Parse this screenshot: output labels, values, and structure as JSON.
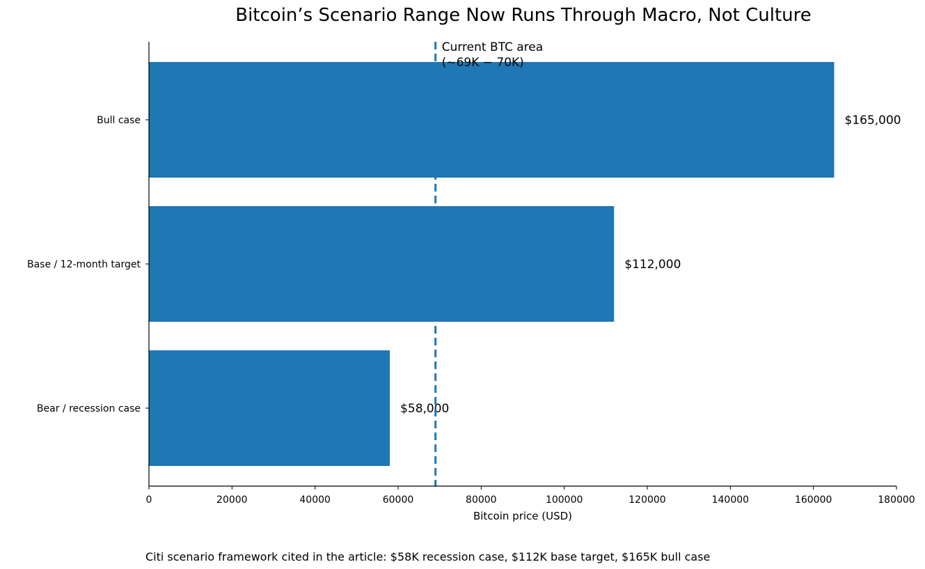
{
  "chart_data": {
    "type": "bar",
    "orientation": "horizontal",
    "title": "Bitcoin’s Scenario Range Now Runs Through Macro, Not Culture",
    "xlabel": "Bitcoin price (USD)",
    "ylabel": "",
    "categories": [
      "Bear / recession case",
      "Base / 12-month target",
      "Bull case"
    ],
    "values": [
      58000,
      112000,
      165000
    ],
    "value_labels": [
      "$58,000",
      "$112,000",
      "$165,000"
    ],
    "xlim": [
      0,
      180000
    ],
    "x_ticks": [
      0,
      20000,
      40000,
      60000,
      80000,
      100000,
      120000,
      140000,
      160000,
      180000
    ],
    "bar_color": "#1f77b4",
    "grid": false,
    "reference_line": {
      "x": 69000,
      "label_line1": "Current BTC area",
      "label_line2": "(~69K − 70K)",
      "color": "#1f77b4",
      "style": "dashed"
    },
    "footnote": "Citi scenario framework cited in the article: $58K recession case, $112K base target, $165K bull case"
  }
}
